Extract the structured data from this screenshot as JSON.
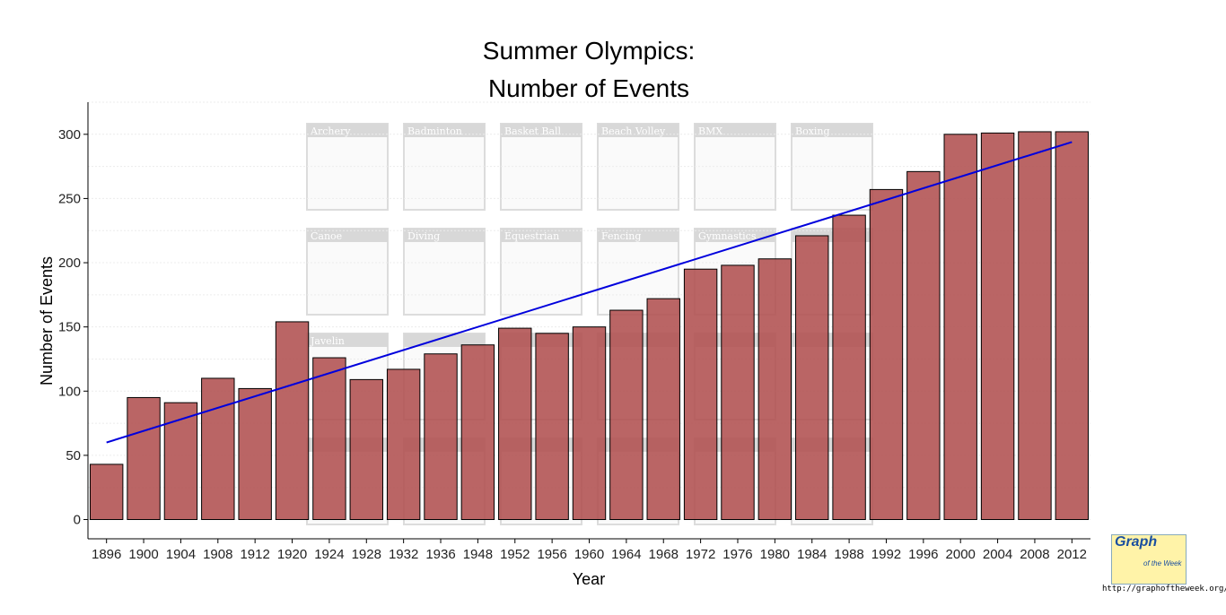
{
  "chart_data": {
    "type": "bar",
    "title": [
      "Summer Olympics:",
      "Number of Events"
    ],
    "xlabel": "Year",
    "ylabel": "Number of Events",
    "ylim": [
      -15,
      325
    ],
    "yticks": [
      0,
      50,
      100,
      150,
      200,
      250,
      300
    ],
    "grid": true,
    "categories": [
      "1896",
      "1900",
      "1904",
      "1908",
      "1912",
      "1920",
      "1924",
      "1928",
      "1932",
      "1936",
      "1948",
      "1952",
      "1956",
      "1960",
      "1964",
      "1968",
      "1972",
      "1976",
      "1980",
      "1984",
      "1988",
      "1992",
      "1996",
      "2000",
      "2004",
      "2008",
      "2012"
    ],
    "values": [
      43,
      95,
      91,
      110,
      102,
      154,
      126,
      109,
      117,
      129,
      136,
      149,
      145,
      150,
      163,
      172,
      195,
      198,
      203,
      221,
      237,
      257,
      271,
      300,
      301,
      302,
      302
    ],
    "trendline": {
      "start": 60,
      "end": 294
    },
    "colors": {
      "bar": "#b05050",
      "trend": "#0000dd"
    }
  },
  "background_tiles": [
    "Archery",
    "Badminton",
    "Basket Ball",
    "Beach Volley",
    "BMX",
    "Boxing",
    "Canoe",
    "Diving",
    "Equestrian",
    "Fencing",
    "Gymnastics",
    "",
    "Javelin",
    "",
    "",
    "",
    "",
    "",
    "",
    "",
    "",
    "",
    "",
    ""
  ],
  "logo": {
    "title": "Graph",
    "subtitle": "of the Week",
    "url": "http://graphoftheweek.org/"
  }
}
